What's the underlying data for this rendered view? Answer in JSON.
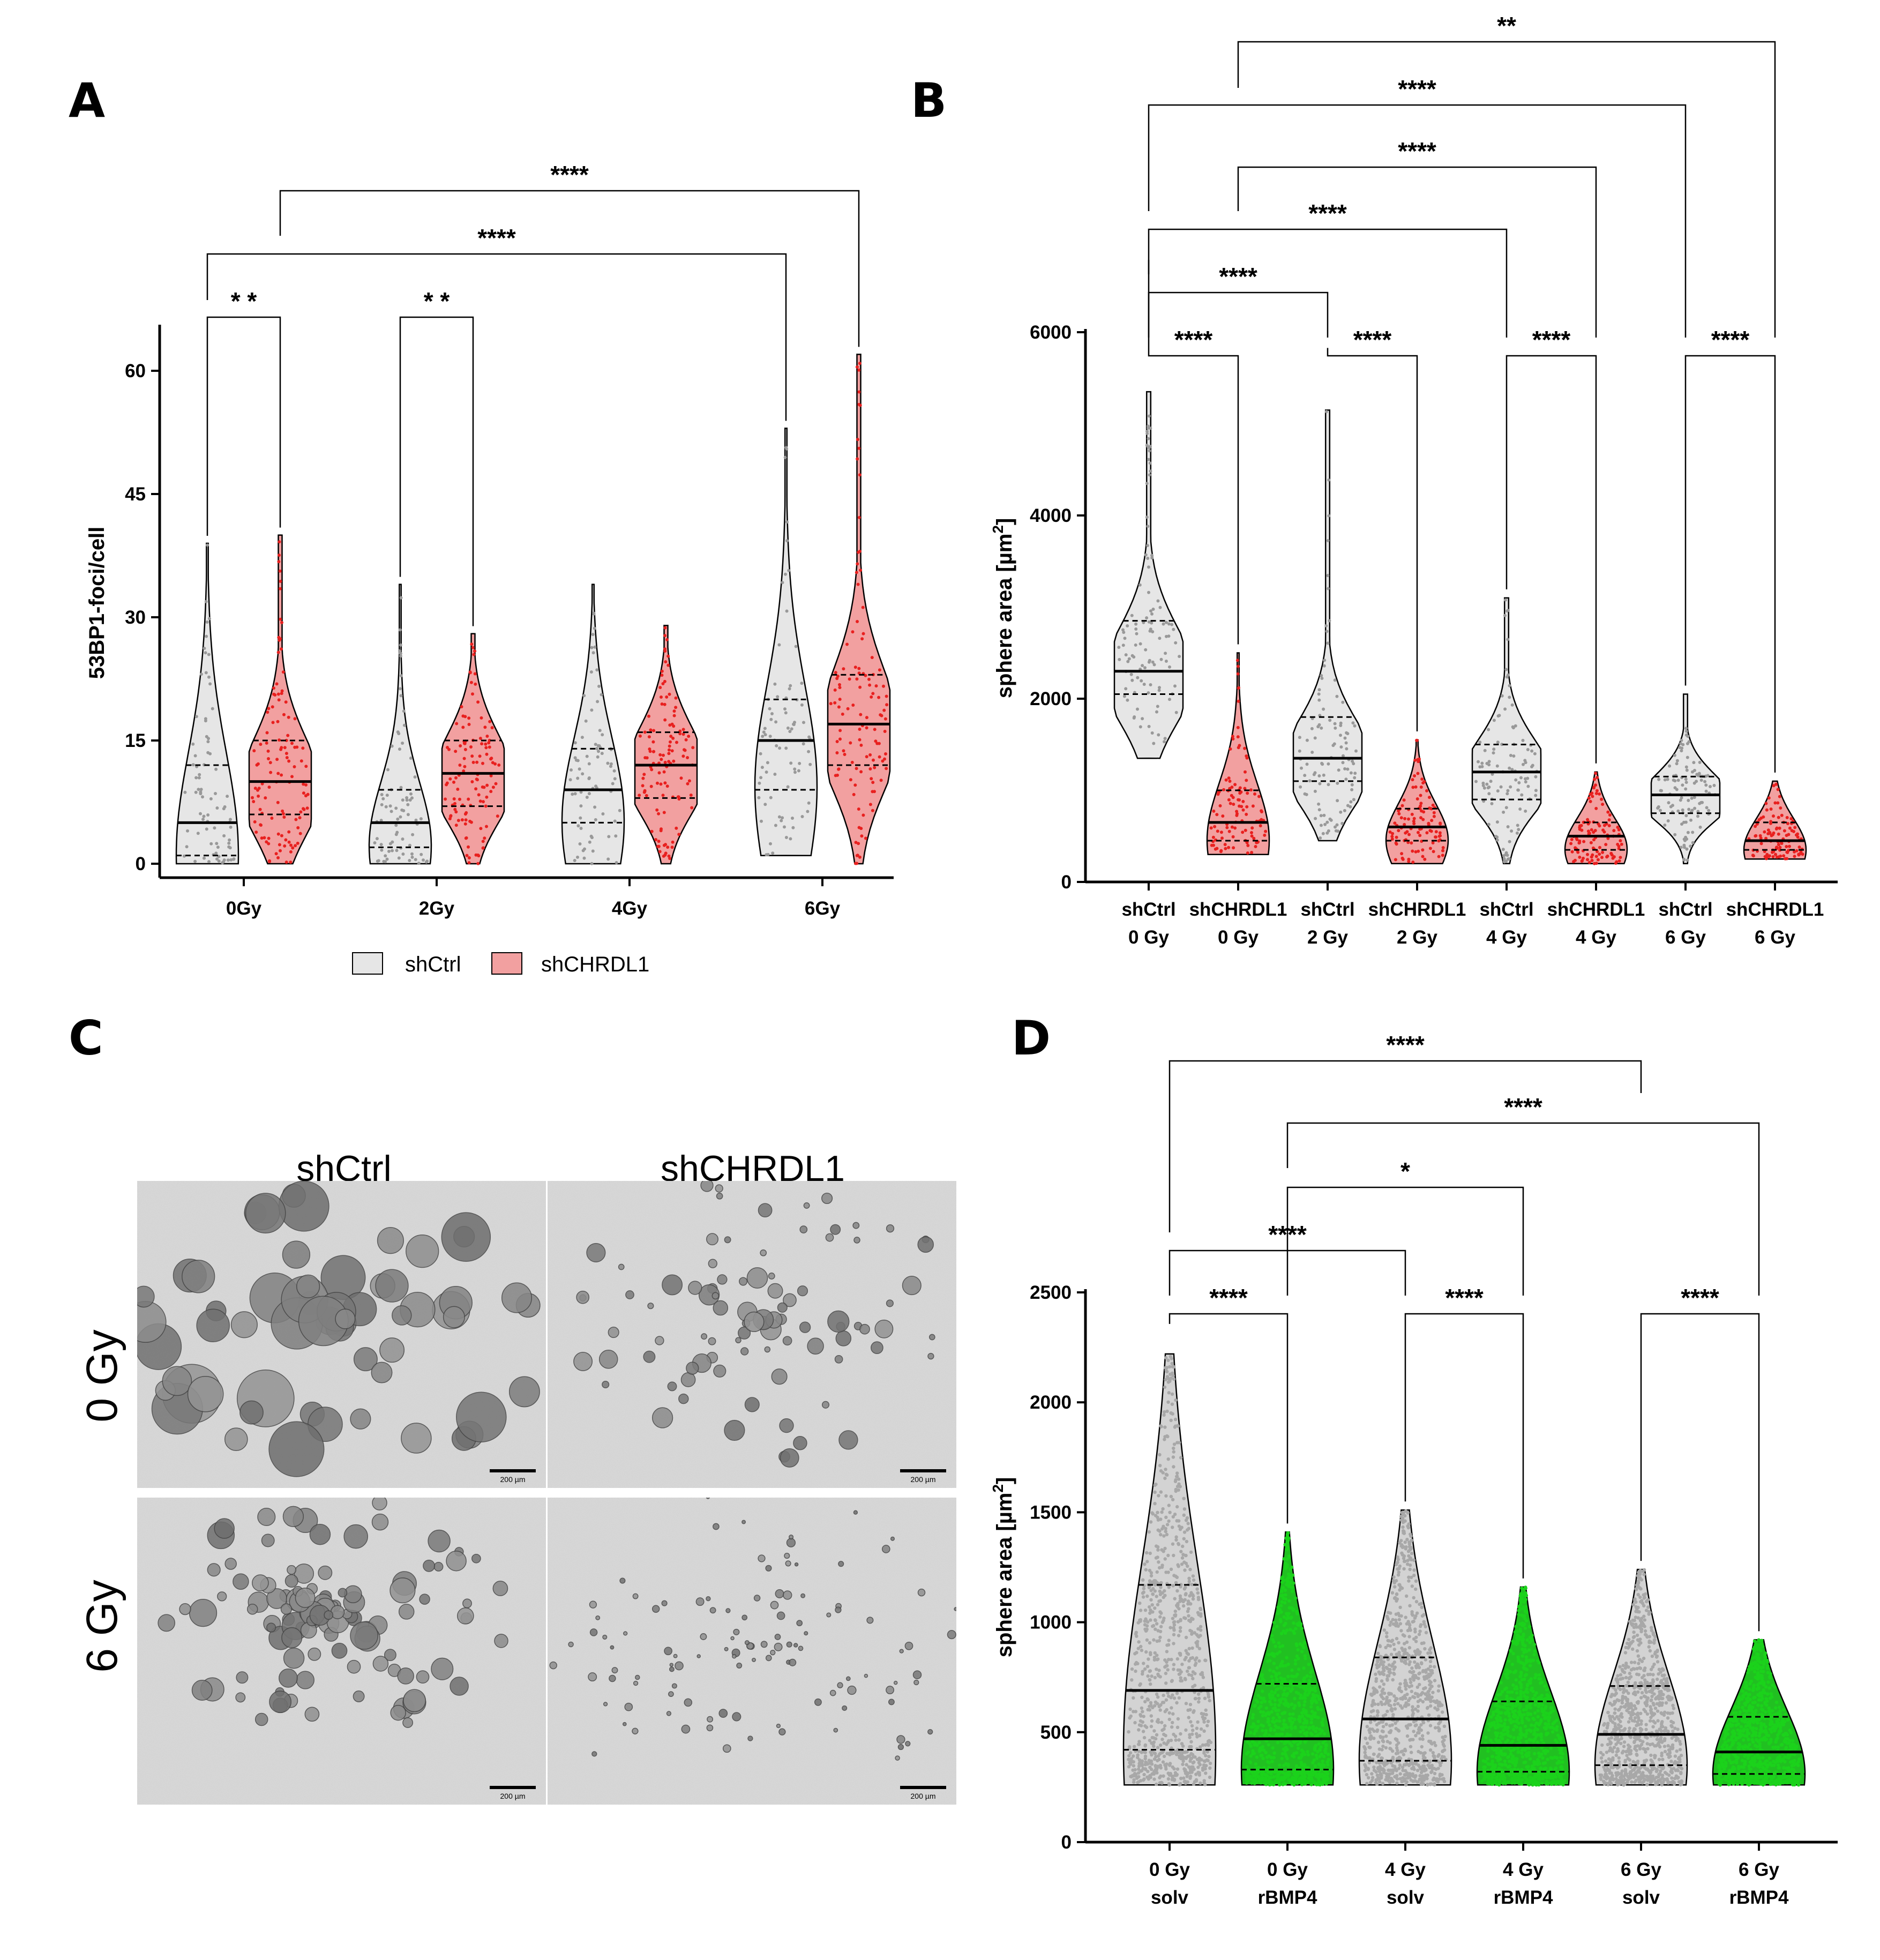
{
  "panels": {
    "A": "A",
    "B": "B",
    "C": "C",
    "D": "D"
  },
  "colors": {
    "ctrl_fill": "#e6e6e6",
    "ctrl_dot": "#999999",
    "kd_fill": "#f2a0a0",
    "kd_dot": "#e8201f",
    "bmp_fill": "#21c021",
    "bmp_dot": "#1bd21b",
    "solv_dot": "#a8a8a8",
    "outline": "#000000"
  },
  "chart_data": [
    {
      "id": "A",
      "type": "violin",
      "title": "",
      "ylabel": "53BP1-foci/cell",
      "xlabel": "",
      "ylim": [
        0,
        65
      ],
      "yticks": [
        0,
        15,
        30,
        45,
        60
      ],
      "categories": [
        "0Gy",
        "2Gy",
        "4Gy",
        "6Gy"
      ],
      "legend": [
        "shCtrl",
        "shCHRDL1"
      ],
      "series": [
        {
          "name": "shCtrl",
          "groups": [
            {
              "category": "0Gy",
              "min": 0,
              "max": 39,
              "q1": 1,
              "median": 5,
              "q3": 12
            },
            {
              "category": "2Gy",
              "min": 0,
              "max": 34,
              "q1": 2,
              "median": 5,
              "q3": 9
            },
            {
              "category": "4Gy",
              "min": 0,
              "max": 34,
              "q1": 5,
              "median": 9,
              "q3": 14
            },
            {
              "category": "6Gy",
              "min": 1,
              "max": 53,
              "q1": 9,
              "median": 15,
              "q3": 20
            }
          ]
        },
        {
          "name": "shCHRDL1",
          "groups": [
            {
              "category": "0Gy",
              "min": 0,
              "max": 40,
              "q1": 6,
              "median": 10,
              "q3": 15
            },
            {
              "category": "2Gy",
              "min": 0,
              "max": 28,
              "q1": 7,
              "median": 11,
              "q3": 15
            },
            {
              "category": "4Gy",
              "min": 0,
              "max": 29,
              "q1": 8,
              "median": 12,
              "q3": 16
            },
            {
              "category": "6Gy",
              "min": 0,
              "max": 62,
              "q1": 12,
              "median": 17,
              "q3": 23
            }
          ]
        }
      ],
      "significance": [
        {
          "from": "shCtrl 0Gy",
          "to": "shCHRDL1 0Gy",
          "label": "* *"
        },
        {
          "from": "shCtrl 2Gy",
          "to": "shCHRDL1 2Gy",
          "label": "* *"
        },
        {
          "from": "shCtrl 0Gy",
          "to": "shCtrl 6Gy",
          "label": "****"
        },
        {
          "from": "shCHRDL1 0Gy",
          "to": "shCHRDL1 6Gy",
          "label": "****"
        }
      ]
    },
    {
      "id": "B",
      "type": "violin",
      "title": "",
      "ylabel": "sphere area [µm²]",
      "xlabel": "",
      "ylim": [
        0,
        6000
      ],
      "yticks": [
        0,
        2000,
        4000,
        6000
      ],
      "categories": [
        {
          "line1": "shCtrl",
          "line2": "0 Gy"
        },
        {
          "line1": "shCHRDL1",
          "line2": "0 Gy"
        },
        {
          "line1": "shCtrl",
          "line2": "2 Gy"
        },
        {
          "line1": "shCHRDL1",
          "line2": "2 Gy"
        },
        {
          "line1": "shCtrl",
          "line2": "4 Gy"
        },
        {
          "line1": "shCHRDL1",
          "line2": "4 Gy"
        },
        {
          "line1": "shCtrl",
          "line2": "6 Gy"
        },
        {
          "line1": "shCHRDL1",
          "line2": "6 Gy"
        }
      ],
      "groups": [
        {
          "series": "shCtrl",
          "dose": "0 Gy",
          "min": 1350,
          "max": 5350,
          "q1": 2050,
          "median": 2300,
          "q3": 2850
        },
        {
          "series": "shCHRDL1",
          "dose": "0 Gy",
          "min": 300,
          "max": 2500,
          "q1": 450,
          "median": 650,
          "q3": 1000
        },
        {
          "series": "shCtrl",
          "dose": "2 Gy",
          "min": 450,
          "max": 5150,
          "q1": 1100,
          "median": 1350,
          "q3": 1800
        },
        {
          "series": "shCHRDL1",
          "dose": "2 Gy",
          "min": 200,
          "max": 1550,
          "q1": 450,
          "median": 600,
          "q3": 800
        },
        {
          "series": "shCtrl",
          "dose": "4 Gy",
          "min": 200,
          "max": 3100,
          "q1": 900,
          "median": 1200,
          "q3": 1500
        },
        {
          "series": "shCHRDL1",
          "dose": "4 Gy",
          "min": 200,
          "max": 1200,
          "q1": 350,
          "median": 500,
          "q3": 650
        },
        {
          "series": "shCtrl",
          "dose": "6 Gy",
          "min": 200,
          "max": 2050,
          "q1": 750,
          "median": 950,
          "q3": 1150
        },
        {
          "series": "shCHRDL1",
          "dose": "6 Gy",
          "min": 250,
          "max": 1100,
          "q1": 350,
          "median": 450,
          "q3": 650
        }
      ],
      "significance": [
        {
          "from": 0,
          "to": 1,
          "label": "****"
        },
        {
          "from": 2,
          "to": 3,
          "label": "****"
        },
        {
          "from": 4,
          "to": 5,
          "label": "****"
        },
        {
          "from": 6,
          "to": 7,
          "label": "****"
        },
        {
          "from": 0,
          "to": 2,
          "label": "****"
        },
        {
          "from": 0,
          "to": 4,
          "label": "****"
        },
        {
          "from": 1,
          "to": 5,
          "label": "****"
        },
        {
          "from": 0,
          "to": 6,
          "label": "****"
        },
        {
          "from": 1,
          "to": 7,
          "label": "**"
        }
      ]
    },
    {
      "id": "D",
      "type": "violin",
      "title": "",
      "ylabel": "sphere area [µm²]",
      "xlabel": "",
      "ylim": [
        0,
        2500
      ],
      "yticks": [
        0,
        500,
        1000,
        1500,
        2000,
        2500
      ],
      "categories": [
        {
          "line1": "0 Gy",
          "line2": "solv"
        },
        {
          "line1": "0 Gy",
          "line2": "rBMP4"
        },
        {
          "line1": "4 Gy",
          "line2": "solv"
        },
        {
          "line1": "4 Gy",
          "line2": "rBMP4"
        },
        {
          "line1": "6 Gy",
          "line2": "solv"
        },
        {
          "line1": "6 Gy",
          "line2": "rBMP4"
        }
      ],
      "groups": [
        {
          "series": "solv",
          "dose": "0 Gy",
          "min": 260,
          "max": 2220,
          "q1": 420,
          "median": 690,
          "q3": 1170
        },
        {
          "series": "rBMP4",
          "dose": "0 Gy",
          "min": 260,
          "max": 1410,
          "q1": 330,
          "median": 470,
          "q3": 720
        },
        {
          "series": "solv",
          "dose": "4 Gy",
          "min": 260,
          "max": 1510,
          "q1": 370,
          "median": 560,
          "q3": 840
        },
        {
          "series": "rBMP4",
          "dose": "4 Gy",
          "min": 260,
          "max": 1160,
          "q1": 320,
          "median": 440,
          "q3": 640
        },
        {
          "series": "solv",
          "dose": "6 Gy",
          "min": 260,
          "max": 1240,
          "q1": 350,
          "median": 490,
          "q3": 710
        },
        {
          "series": "rBMP4",
          "dose": "6 Gy",
          "min": 260,
          "max": 920,
          "q1": 310,
          "median": 410,
          "q3": 570
        }
      ],
      "significance": [
        {
          "from": 0,
          "to": 1,
          "label": "****"
        },
        {
          "from": 2,
          "to": 3,
          "label": "****"
        },
        {
          "from": 4,
          "to": 5,
          "label": "****"
        },
        {
          "from": 0,
          "to": 2,
          "label": "****"
        },
        {
          "from": 1,
          "to": 3,
          "label": "*"
        },
        {
          "from": 1,
          "to": 5,
          "label": "****"
        },
        {
          "from": 0,
          "to": 4,
          "label": "****"
        }
      ]
    }
  ],
  "micrographs": {
    "columns": [
      "shCtrl",
      "shCHRDL1"
    ],
    "rows": [
      "0 Gy",
      "6 Gy"
    ],
    "scale_bar": "200 µm"
  }
}
